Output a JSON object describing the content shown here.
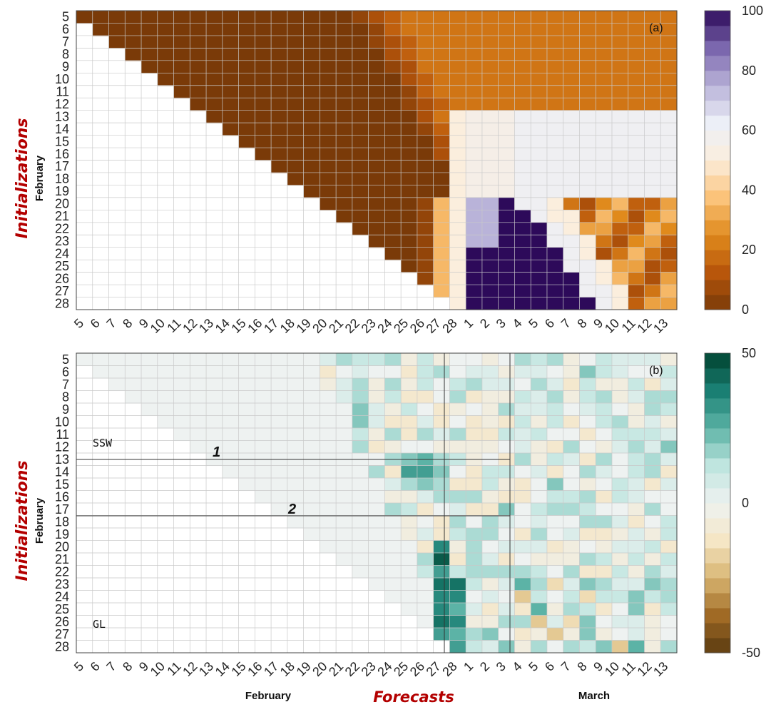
{
  "chart_data": [
    {
      "panel": "(a)",
      "type": "heatmap",
      "ylabel": "Initializations",
      "ylabel_month": "February",
      "y_ticks": [
        "5",
        "6",
        "7",
        "8",
        "9",
        "10",
        "11",
        "12",
        "13",
        "14",
        "15",
        "16",
        "17",
        "18",
        "19",
        "20",
        "21",
        "22",
        "23",
        "24",
        "25",
        "26",
        "27",
        "28"
      ],
      "x_ticks": [
        "5",
        "6",
        "7",
        "8",
        "9",
        "10",
        "11",
        "12",
        "13",
        "14",
        "15",
        "16",
        "17",
        "18",
        "19",
        "20",
        "21",
        "22",
        "23",
        "24",
        "25",
        "26",
        "27",
        "28",
        "1",
        "2",
        "3",
        "4",
        "5",
        "6",
        "7",
        "8",
        "9",
        "10",
        "11",
        "12",
        "13"
      ],
      "colorbar": {
        "min": 0,
        "max": 100,
        "ticks": [
          "0",
          "20",
          "40",
          "60",
          "80",
          "100"
        ],
        "palette": "brown-orange-white-purple",
        "levels": 20
      },
      "description_of_values": "Cells with forecast date before ~Feb 22 are near 0 (brown); a transition to high values (dark purple, ~100) occurs around Feb 27 – Mar 6 for initializations Feb 20–28; later dates return to 20–50.",
      "grid": true
    },
    {
      "panel": "(b)",
      "type": "heatmap",
      "ylabel": "Initializations",
      "ylabel_month": "February",
      "xlabel": "Forecasts",
      "xlabel_months": [
        "February",
        "March"
      ],
      "y_ticks": [
        "5",
        "6",
        "7",
        "8",
        "9",
        "10",
        "11",
        "12",
        "13",
        "14",
        "15",
        "16",
        "17",
        "18",
        "19",
        "20",
        "21",
        "22",
        "23",
        "24",
        "25",
        "26",
        "27",
        "28"
      ],
      "x_ticks": [
        "5",
        "6",
        "7",
        "8",
        "9",
        "10",
        "11",
        "12",
        "13",
        "14",
        "15",
        "16",
        "17",
        "18",
        "19",
        "20",
        "21",
        "22",
        "23",
        "24",
        "25",
        "26",
        "27",
        "28",
        "1",
        "2",
        "3",
        "4",
        "5",
        "6",
        "7",
        "8",
        "9",
        "10",
        "11",
        "12",
        "13"
      ],
      "colorbar": {
        "min": -50,
        "max": 50,
        "ticks": [
          "-50",
          "0",
          "50"
        ],
        "palette": "brown-white-teal",
        "levels": 20
      },
      "annotations": [
        {
          "text": "SSW"
        },
        {
          "text": "GL"
        },
        {
          "text": "1"
        },
        {
          "text": "2"
        }
      ],
      "reference_lines": {
        "horizontal_after_init": [
          "13",
          "17"
        ],
        "vertical_at_forecast": [
          "27 Feb",
          "3 Mar"
        ]
      },
      "grid": true
    }
  ]
}
